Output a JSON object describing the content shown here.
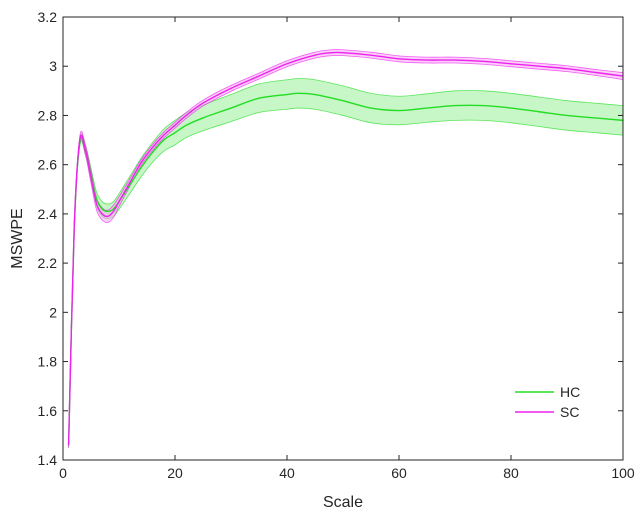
{
  "chart_data": {
    "type": "line",
    "title": "",
    "xlabel": "Scale",
    "ylabel": "MSWPE",
    "xlim": [
      0,
      100
    ],
    "ylim": [
      1.4,
      3.2
    ],
    "xticks": [
      0,
      20,
      40,
      60,
      80,
      100
    ],
    "xtick_labels": [
      "0",
      "20",
      "40",
      "60",
      "80",
      "100"
    ],
    "yticks": [
      1.4,
      1.6,
      1.8,
      2.0,
      2.2,
      2.4,
      2.6,
      2.8,
      3.0,
      3.2
    ],
    "ytick_labels": [
      "1.4",
      "1.6",
      "1.8",
      "2",
      "2.2",
      "2.4",
      "2.6",
      "2.8",
      "3",
      "3.2"
    ],
    "grid": false,
    "legend_position": "bottom-right",
    "series": [
      {
        "name": "HC",
        "color": "#22dd22",
        "band_color": "#99ee99",
        "x": [
          1,
          2,
          3,
          4,
          5,
          6,
          7,
          8,
          9,
          10,
          12,
          14,
          16,
          18,
          20,
          22,
          25,
          30,
          35,
          40,
          42,
          45,
          50,
          55,
          60,
          65,
          70,
          75,
          80,
          85,
          90,
          95,
          100
        ],
        "y": [
          1.46,
          2.34,
          2.69,
          2.66,
          2.56,
          2.46,
          2.42,
          2.41,
          2.42,
          2.45,
          2.52,
          2.59,
          2.65,
          2.7,
          2.73,
          2.76,
          2.79,
          2.83,
          2.87,
          2.885,
          2.89,
          2.885,
          2.86,
          2.83,
          2.82,
          2.83,
          2.84,
          2.84,
          2.83,
          2.815,
          2.8,
          2.79,
          2.78
        ],
        "band": [
          0.01,
          0.012,
          0.015,
          0.02,
          0.025,
          0.028,
          0.03,
          0.03,
          0.03,
          0.032,
          0.035,
          0.038,
          0.04,
          0.045,
          0.05,
          0.05,
          0.052,
          0.055,
          0.058,
          0.06,
          0.06,
          0.06,
          0.06,
          0.06,
          0.058,
          0.058,
          0.06,
          0.06,
          0.06,
          0.06,
          0.06,
          0.06,
          0.06
        ]
      },
      {
        "name": "SC",
        "color": "#ee22ee",
        "band_color": "#f5aaf5",
        "x": [
          1,
          2,
          3,
          4,
          5,
          6,
          7,
          8,
          9,
          10,
          12,
          14,
          16,
          18,
          20,
          22,
          25,
          30,
          35,
          40,
          45,
          48,
          50,
          55,
          60,
          65,
          70,
          75,
          80,
          85,
          90,
          95,
          100
        ],
        "y": [
          1.46,
          2.34,
          2.7,
          2.66,
          2.55,
          2.44,
          2.4,
          2.39,
          2.41,
          2.45,
          2.53,
          2.61,
          2.67,
          2.72,
          2.76,
          2.8,
          2.85,
          2.91,
          2.96,
          3.01,
          3.045,
          3.055,
          3.055,
          3.045,
          3.03,
          3.025,
          3.025,
          3.02,
          3.01,
          3.0,
          2.99,
          2.975,
          2.96
        ],
        "band": [
          0.01,
          0.012,
          0.015,
          0.02,
          0.025,
          0.025,
          0.025,
          0.025,
          0.025,
          0.02,
          0.015,
          0.012,
          0.012,
          0.012,
          0.012,
          0.012,
          0.012,
          0.012,
          0.012,
          0.012,
          0.012,
          0.012,
          0.012,
          0.012,
          0.012,
          0.012,
          0.012,
          0.012,
          0.012,
          0.012,
          0.012,
          0.012,
          0.014
        ]
      }
    ]
  }
}
